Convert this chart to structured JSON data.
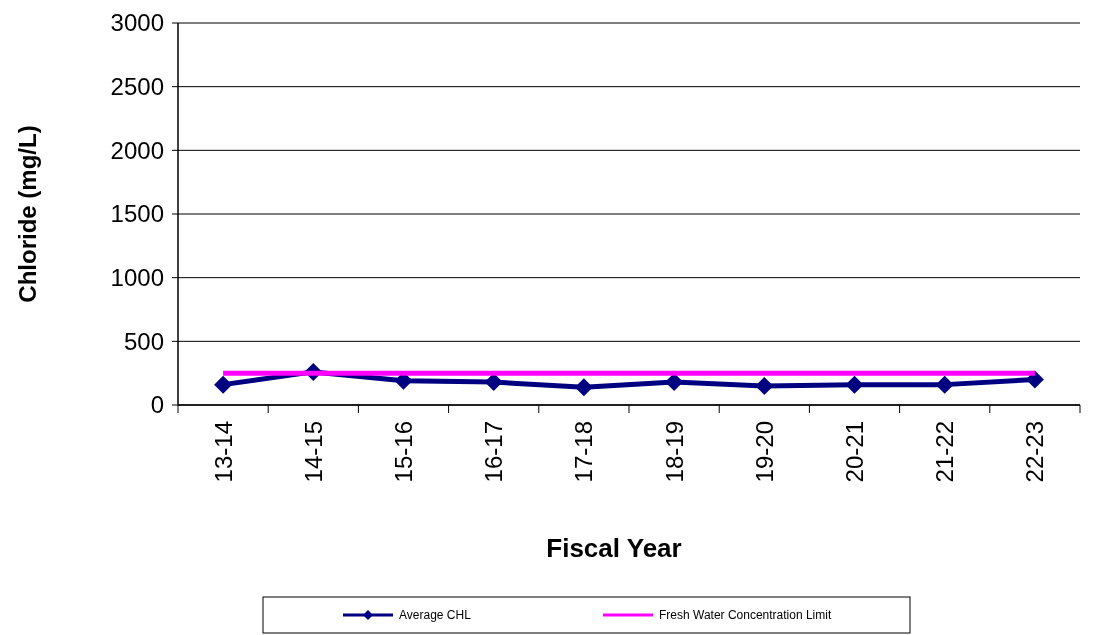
{
  "chart_data": {
    "type": "line",
    "xlabel": "Fiscal Year",
    "ylabel": "Chloride (mg/L)",
    "categories": [
      "13-14",
      "14-15",
      "15-16",
      "16-17",
      "17-18",
      "18-19",
      "19-20",
      "20-21",
      "21-22",
      "22-23"
    ],
    "series": [
      {
        "name": "Average CHL",
        "color": "#000080",
        "marker": "diamond",
        "values": [
          160,
          260,
          190,
          180,
          140,
          180,
          150,
          160,
          160,
          200
        ]
      },
      {
        "name": "Fresh Water Concentration Limit",
        "color": "#ff00ff",
        "marker": "none",
        "values": [
          250,
          250,
          250,
          250,
          250,
          250,
          250,
          250,
          250,
          250
        ]
      }
    ],
    "ylim": [
      0,
      3000
    ],
    "yticks": [
      0,
      500,
      1000,
      1500,
      2000,
      2500,
      3000
    ],
    "grid": "y",
    "legend": "bottom",
    "line_style": "solid"
  }
}
